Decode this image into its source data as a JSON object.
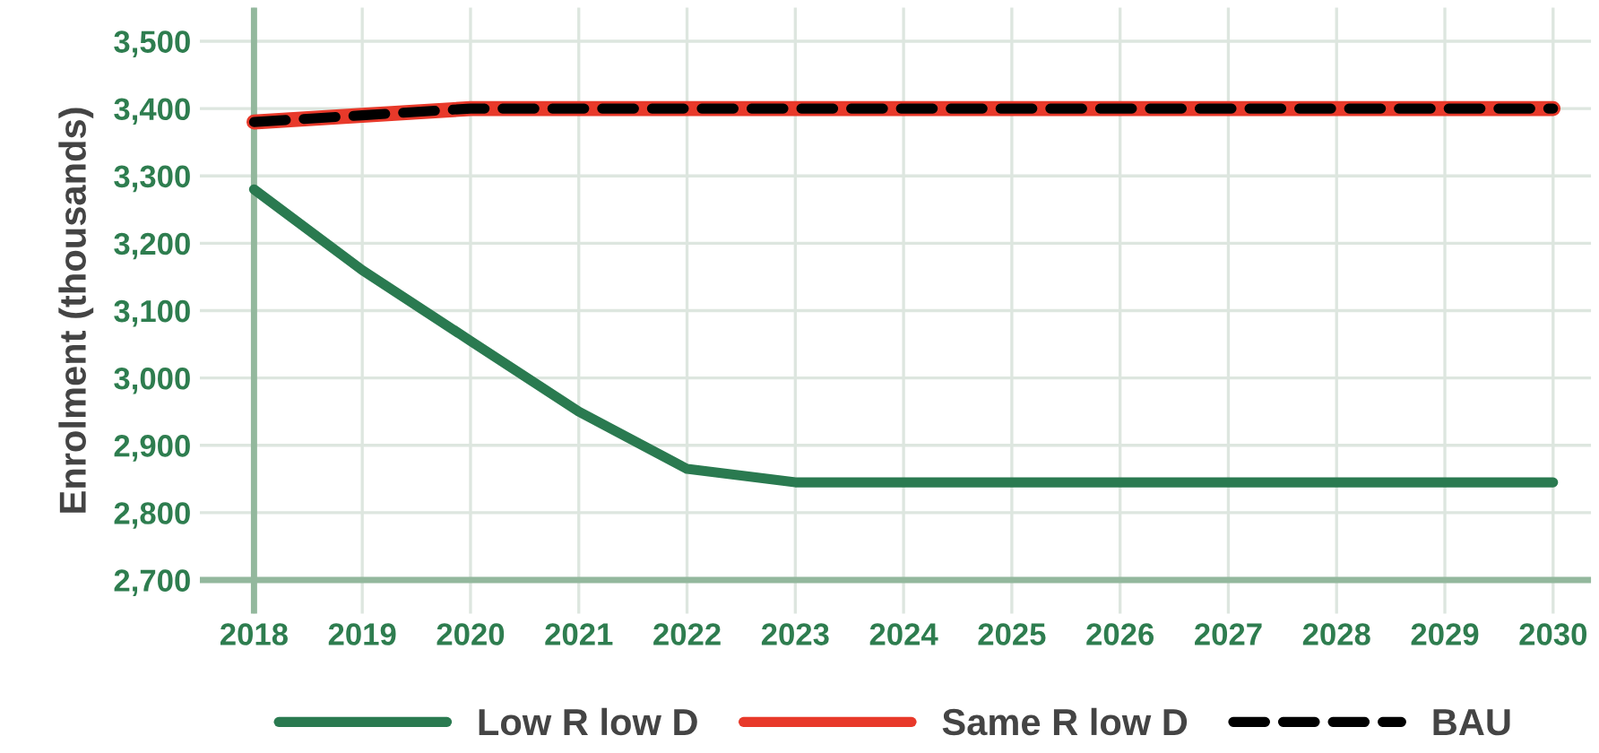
{
  "chart_data": {
    "type": "line",
    "ylabel": "Enrolment (thousands)",
    "x": [
      2018,
      2019,
      2020,
      2021,
      2022,
      2023,
      2024,
      2025,
      2026,
      2027,
      2028,
      2029,
      2030
    ],
    "series": [
      {
        "name": "Low R low D",
        "color": "#2a7a50",
        "values": [
          3280,
          3160,
          3055,
          2950,
          2865,
          2845,
          2845,
          2845,
          2845,
          2845,
          2845,
          2845,
          2845
        ]
      },
      {
        "name": "Same R low D",
        "color": "#e8392a",
        "values": [
          3380,
          3390,
          3400,
          3400,
          3400,
          3400,
          3400,
          3400,
          3400,
          3400,
          3400,
          3400,
          3400
        ]
      },
      {
        "name": "BAU",
        "color": "#000000",
        "line_style": "dashed",
        "values": [
          3380,
          3390,
          3400,
          3400,
          3400,
          3400,
          3400,
          3400,
          3400,
          3400,
          3400,
          3400,
          3400
        ]
      }
    ],
    "xlim": [
      2017.5,
      2030.35
    ],
    "xticks": [
      2018,
      2019,
      2020,
      2021,
      2022,
      2023,
      2024,
      2025,
      2026,
      2027,
      2028,
      2029,
      2030
    ],
    "ylim": [
      2650,
      3550
    ],
    "yticks": [
      {
        "value": 2700,
        "label": "2,700"
      },
      {
        "value": 2800,
        "label": "2,800"
      },
      {
        "value": 2900,
        "label": "2,900"
      },
      {
        "value": 3000,
        "label": "3,000"
      },
      {
        "value": 3100,
        "label": "3,100"
      },
      {
        "value": 3200,
        "label": "3,200"
      },
      {
        "value": 3300,
        "label": "3,300"
      },
      {
        "value": 3400,
        "label": "3,400"
      },
      {
        "value": 3500,
        "label": "3,500"
      }
    ],
    "grid": true,
    "legend": "bottom",
    "line_style": "solid",
    "marker": "none"
  }
}
